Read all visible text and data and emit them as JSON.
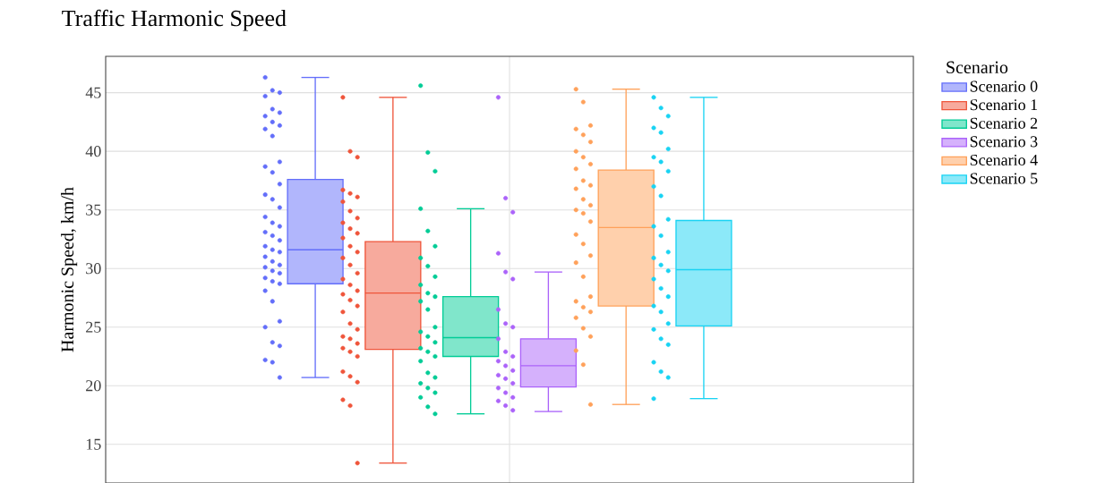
{
  "chart_data": {
    "type": "box",
    "title": "Traffic Harmonic Speed",
    "ylabel": "Harmonic Speed, km/h",
    "legend_title": "Scenario",
    "categories": [
      null
    ],
    "ylim": [
      11.7,
      48.1
    ],
    "yticks": [
      15,
      20,
      25,
      30,
      35,
      40,
      45
    ],
    "grid": true,
    "legend": "top right",
    "tick_labels": "y",
    "marker": "circle",
    "series": [
      {
        "name": "Scenario 0",
        "color": "#636efa",
        "boxes": [
          {
            "low": 20.7,
            "q1": 28.7,
            "median": 31.6,
            "q3": 37.6,
            "high": 46.3
          }
        ]
      },
      {
        "name": "Scenario 1",
        "color": "#ef553b",
        "boxes": [
          {
            "low": 13.4,
            "q1": 23.1,
            "median": 27.9,
            "q3": 32.3,
            "high": 44.6
          }
        ]
      },
      {
        "name": "Scenario 2",
        "color": "#00cc96",
        "boxes": [
          {
            "low": 17.6,
            "q1": 22.5,
            "median": 24.1,
            "q3": 27.6,
            "high": 35.1
          }
        ]
      },
      {
        "name": "Scenario 3",
        "color": "#ab63fa",
        "boxes": [
          {
            "low": 17.8,
            "q1": 19.9,
            "median": 21.7,
            "q3": 24.0,
            "high": 29.7
          }
        ]
      },
      {
        "name": "Scenario 4",
        "color": "#ffa15a",
        "boxes": [
          {
            "low": 18.4,
            "q1": 26.8,
            "median": 33.5,
            "q3": 38.4,
            "high": 45.3
          }
        ]
      },
      {
        "name": "Scenario 5",
        "color": "#19d3f3",
        "boxes": [
          {
            "low": 18.9,
            "q1": 25.1,
            "median": 29.9,
            "q3": 34.1,
            "high": 44.6
          }
        ]
      },
      {
        "type": "scatter",
        "color": "#636efa",
        "x": [
          null,
          null,
          null,
          null,
          null,
          null,
          null,
          null,
          null,
          null,
          null,
          null,
          null,
          null,
          null,
          null,
          null,
          null,
          null,
          null,
          null,
          null,
          null,
          null,
          null,
          null,
          null,
          null,
          null,
          null,
          null,
          null,
          null,
          null,
          null,
          null,
          null,
          null,
          null,
          null,
          null,
          null,
          null,
          null,
          null
        ],
        "values": [
          46.3,
          45.2,
          45.0,
          44.7,
          43.6,
          43.3,
          43.0,
          42.5,
          42.2,
          41.9,
          41.3,
          39.1,
          38.7,
          38.2,
          37.2,
          36.3,
          35.9,
          35.2,
          34.4,
          33.9,
          33.6,
          33.1,
          32.8,
          32.4,
          31.9,
          31.6,
          31.4,
          31.0,
          30.6,
          30.3,
          30.1,
          29.8,
          29.6,
          29.2,
          28.9,
          28.7,
          28.1,
          27.2,
          25.5,
          25.0,
          23.7,
          23.4,
          22.2,
          22.0,
          20.7
        ]
      },
      {
        "type": "scatter",
        "color": "#ef553b",
        "x": [
          null,
          null,
          null,
          null,
          null,
          null,
          null,
          null,
          null,
          null,
          null,
          null,
          null,
          null,
          null,
          null,
          null,
          null,
          null,
          null,
          null,
          null,
          null,
          null,
          null,
          null,
          null,
          null,
          null,
          null,
          null,
          null,
          null,
          null,
          null,
          null,
          null,
          null,
          null
        ],
        "values": [
          44.6,
          40.0,
          39.5,
          36.7,
          36.4,
          36.1,
          35.7,
          34.9,
          34.3,
          33.9,
          33.4,
          33.0,
          32.6,
          31.9,
          31.4,
          30.9,
          30.3,
          29.6,
          29.1,
          28.6,
          28.1,
          27.8,
          27.3,
          26.8,
          26.3,
          25.3,
          24.8,
          24.2,
          24.0,
          23.6,
          23.2,
          22.9,
          22.5,
          21.2,
          20.8,
          20.3,
          18.8,
          18.3,
          13.4
        ]
      },
      {
        "type": "scatter",
        "color": "#00cc96",
        "x": [
          null,
          null,
          null,
          null,
          null,
          null,
          null,
          null,
          null,
          null,
          null,
          null,
          null,
          null,
          null,
          null,
          null,
          null,
          null,
          null,
          null,
          null,
          null,
          null,
          null,
          null,
          null,
          null,
          null,
          null
        ],
        "values": [
          45.6,
          39.9,
          38.3,
          35.1,
          33.2,
          31.9,
          30.9,
          30.2,
          29.3,
          28.6,
          27.9,
          27.6,
          27.2,
          26.5,
          25.0,
          24.6,
          24.2,
          23.7,
          23.2,
          22.9,
          22.5,
          22.1,
          21.1,
          20.7,
          20.2,
          19.8,
          19.4,
          19.0,
          18.2,
          17.6
        ]
      },
      {
        "type": "scatter",
        "color": "#ab63fa",
        "x": [
          null,
          null,
          null,
          null,
          null,
          null,
          null,
          null,
          null,
          null,
          null,
          null,
          null,
          null,
          null,
          null,
          null,
          null,
          null,
          null,
          null,
          null,
          null,
          null
        ],
        "values": [
          44.6,
          36.0,
          34.8,
          31.3,
          29.7,
          29.1,
          26.5,
          25.3,
          25.0,
          24.0,
          22.9,
          22.5,
          22.1,
          21.7,
          21.3,
          20.9,
          20.6,
          20.2,
          19.8,
          19.4,
          19.0,
          18.7,
          18.3,
          17.9
        ]
      },
      {
        "type": "scatter",
        "color": "#ffa15a",
        "x": [
          null,
          null,
          null,
          null,
          null,
          null,
          null,
          null,
          null,
          null,
          null,
          null,
          null,
          null,
          null,
          null,
          null,
          null,
          null,
          null,
          null,
          null,
          null,
          null,
          null,
          null,
          null,
          null,
          null,
          null,
          null,
          null,
          null
        ],
        "values": [
          45.3,
          44.2,
          42.2,
          41.9,
          41.4,
          40.8,
          40.0,
          39.5,
          38.9,
          38.5,
          37.5,
          37.1,
          36.8,
          35.9,
          35.4,
          35.0,
          34.7,
          34.0,
          32.9,
          32.1,
          31.1,
          30.5,
          29.3,
          27.6,
          27.2,
          26.7,
          26.3,
          25.8,
          24.9,
          24.2,
          23.0,
          21.8,
          18.4
        ]
      },
      {
        "type": "scatter",
        "color": "#19d3f3",
        "x": [
          null,
          null,
          null,
          null,
          null,
          null,
          null,
          null,
          null,
          null,
          null,
          null,
          null,
          null,
          null,
          null,
          null,
          null,
          null,
          null,
          null,
          null,
          null,
          null,
          null,
          null,
          null,
          null,
          null,
          null,
          null
        ],
        "values": [
          44.6,
          43.7,
          43.0,
          42.0,
          41.6,
          40.2,
          39.5,
          39.1,
          38.3,
          37.0,
          36.2,
          34.2,
          33.6,
          32.8,
          31.4,
          30.9,
          30.3,
          29.8,
          29.1,
          28.3,
          27.6,
          26.8,
          26.3,
          25.3,
          24.8,
          24.0,
          23.5,
          22.0,
          21.2,
          20.7,
          18.9
        ]
      }
    ]
  }
}
